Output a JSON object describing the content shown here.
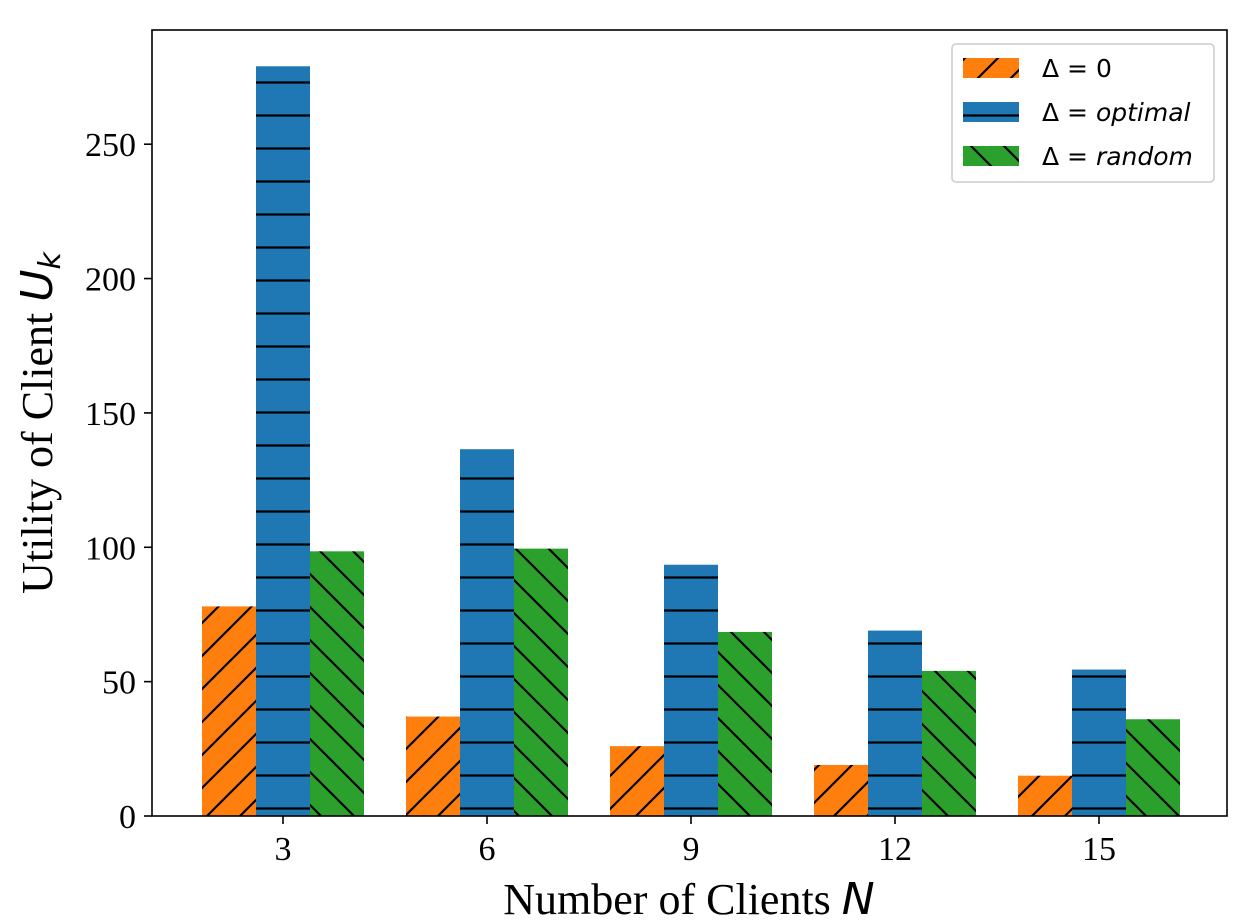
{
  "chart_data": {
    "type": "bar",
    "categories": [
      "3",
      "6",
      "9",
      "12",
      "15"
    ],
    "series": [
      {
        "name_prefix": "Δ = ",
        "name_value": "0",
        "values": [
          78,
          37,
          26,
          19,
          15
        ],
        "color": "#ff7f0e",
        "hatch": "forward-diagonal"
      },
      {
        "name_prefix": "Δ = ",
        "name_value": "optimal",
        "values": [
          279,
          136.5,
          93.5,
          69,
          54.5
        ],
        "color": "#1f77b4",
        "hatch": "horizontal"
      },
      {
        "name_prefix": "Δ = ",
        "name_value": "random",
        "values": [
          98.5,
          99.5,
          68.5,
          54,
          36
        ],
        "color": "#2ca02c",
        "hatch": "back-diagonal"
      }
    ],
    "xlabel_text": "Number of Clients ",
    "xlabel_math": "N",
    "ylabel_text": "Utility of Client ",
    "ylabel_math": "U",
    "ylabel_sub": "k",
    "yticks": [
      "0",
      "50",
      "100",
      "150",
      "200",
      "250"
    ],
    "ylim": [
      0,
      292.5
    ],
    "grid": false,
    "legend_position": "top-right"
  }
}
